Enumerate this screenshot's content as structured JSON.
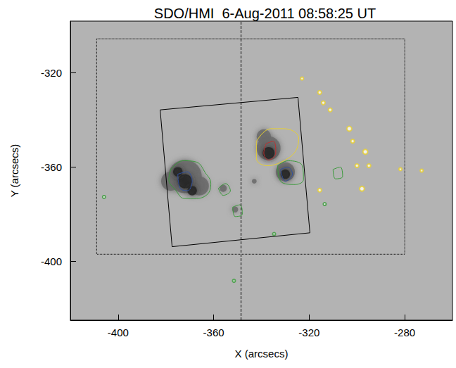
{
  "chart_data": {
    "type": "image",
    "title": "SDO/HMI  6-Aug-2011 08:58:25 UT",
    "x_label": "X (arcsecs)",
    "y_label": "Y (arcsecs)",
    "xlim": [
      -420,
      -260
    ],
    "ylim": [
      -425,
      -298
    ],
    "xticks": [
      -400,
      -360,
      -320,
      -280
    ],
    "yticks": [
      -400,
      -360,
      -320
    ],
    "color": "#b3b3b3",
    "series": [
      {
        "type": "scatter",
        "marker": "circle",
        "color": "#6a6a6a",
        "x": [
          -372,
          -366,
          -378,
          -337,
          -339,
          -330,
          -356,
          -351,
          -343
        ],
        "y": [
          -364,
          -368,
          -366,
          -352,
          -347,
          -362,
          -369,
          -378,
          -366
        ],
        "size": [
          14,
          8,
          8,
          10,
          6,
          8,
          3,
          2.5,
          2
        ]
      },
      {
        "type": "scatter",
        "marker": "circle",
        "color": "#262626",
        "x": [
          -372,
          -375,
          -369,
          -337,
          -330
        ],
        "y": [
          -366,
          -362,
          -370,
          -354,
          -363
        ],
        "size": [
          6,
          4,
          4,
          5,
          4
        ]
      },
      {
        "type": "contour",
        "color": "#3a9a3a",
        "line_style": "solid",
        "x": [
          -377.9,
          -372.9,
          -367.1,
          -363.5,
          -361.2,
          -362.4,
          -367.1,
          -372.4,
          -375.9,
          -378.8
        ],
        "y": [
          -360.9,
          -357.3,
          -357.9,
          -362.4,
          -366.8,
          -371.3,
          -373.3,
          -373.3,
          -369.8,
          -365.3
        ]
      },
      {
        "type": "contour",
        "color": "#3050a0",
        "line_style": "solid",
        "x": [
          -375,
          -371,
          -369,
          -371,
          -374
        ],
        "y": [
          -363,
          -362,
          -366,
          -370,
          -369
        ]
      },
      {
        "type": "contour",
        "color": "#e8d030",
        "line_style": "solid",
        "x": [
          -342.1,
          -336.2,
          -330.3,
          -324.4,
          -325.9,
          -331.8,
          -337.6,
          -342.1
        ],
        "y": [
          -349.0,
          -343.7,
          -343.7,
          -347.6,
          -353.5,
          -357.9,
          -359.4,
          -356.4
        ]
      },
      {
        "type": "contour",
        "color": "#c03030",
        "line_style": "solid",
        "x": [
          -338,
          -335,
          -334,
          -337,
          -339
        ],
        "y": [
          -350,
          -349,
          -354,
          -357,
          -354
        ]
      },
      {
        "type": "contour",
        "color": "#3a9a3a",
        "line_style": "solid",
        "x": [
          -333.2,
          -328.8,
          -322.9,
          -322.4,
          -325.9,
          -331.8
        ],
        "y": [
          -359.4,
          -357.3,
          -359.4,
          -365.3,
          -367.4,
          -366.2
        ]
      },
      {
        "type": "contour",
        "color": "#3050a0",
        "line_style": "solid",
        "x": [
          -332,
          -329,
          -327,
          -330
        ],
        "y": [
          -361,
          -360,
          -363,
          -366
        ]
      },
      {
        "type": "contour",
        "color": "#3a9a3a",
        "line_style": "solid",
        "x": [
          -358,
          -355,
          -353,
          -356
        ],
        "y": [
          -369,
          -367,
          -370,
          -372
        ]
      },
      {
        "type": "contour",
        "color": "#3a9a3a",
        "line_style": "solid",
        "x": [
          -352,
          -349,
          -348,
          -351
        ],
        "y": [
          -377,
          -376,
          -380,
          -381
        ]
      },
      {
        "type": "contour",
        "color": "#3a9a3a",
        "line_style": "solid",
        "x": [
          -310,
          -307,
          -306,
          -309
        ],
        "y": [
          -361,
          -360,
          -364,
          -365
        ]
      },
      {
        "type": "scatter",
        "marker": "ring",
        "color": "#e8d030",
        "x": [
          -315.6,
          -314.1,
          -311.2,
          -303.2,
          -301.8,
          -296.5,
          -300.0,
          -295.0,
          -297.9,
          -315.6,
          -323.0,
          -281.8,
          -272.9
        ],
        "y": [
          -328.3,
          -332.7,
          -335.7,
          -343.7,
          -349.0,
          -353.5,
          -359.4,
          -359.4,
          -369.2,
          -369.8,
          -322.4,
          -360.9,
          -361.5
        ],
        "size": [
          1.5,
          1.5,
          1.5,
          2,
          1.5,
          2,
          1.5,
          1.5,
          2,
          1.5,
          1.2,
          1.2,
          1.2
        ]
      },
      {
        "type": "scatter",
        "marker": "ring",
        "color": "#3a9a3a",
        "x": [
          -405.9,
          -351.5,
          -334.7,
          -313.5
        ],
        "y": [
          -372.7,
          -408.3,
          -388.4,
          -375.7
        ],
        "size": [
          1.2,
          1.2,
          1.2,
          1.2
        ]
      },
      {
        "type": "polygon",
        "color": "#000000",
        "line_style": "dotted",
        "x": [
          -409,
          -280,
          -280,
          -409
        ],
        "y": [
          -305.5,
          -305.5,
          -397,
          -397
        ]
      },
      {
        "type": "polygon",
        "color": "#000000",
        "line_style": "solid",
        "x": [
          -382.4,
          -324.7,
          -319.7,
          -377.4
        ],
        "y": [
          -335.7,
          -330.4,
          -387.9,
          -393.8
        ]
      },
      {
        "type": "vline",
        "color": "#000000",
        "line_style": "dashed",
        "x": -348.5
      }
    ]
  }
}
